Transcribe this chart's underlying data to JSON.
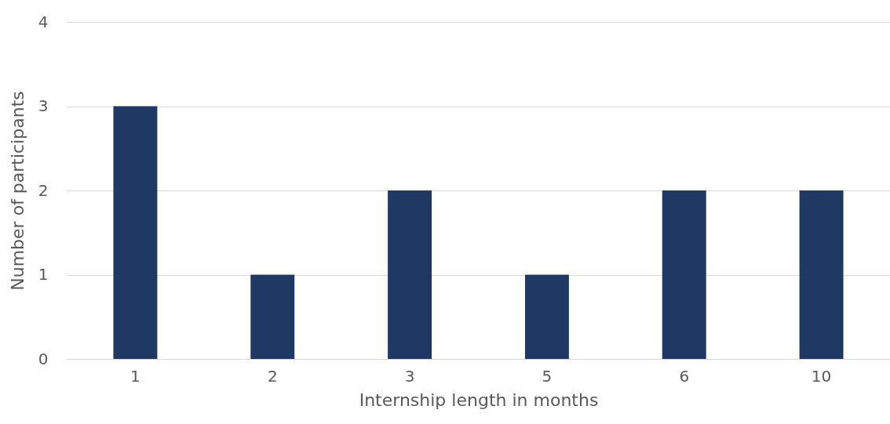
{
  "chart_data": {
    "type": "bar",
    "xlabel": "Internship length in months",
    "ylabel": "Number of participants",
    "categories": [
      "1",
      "2",
      "3",
      "5",
      "6",
      "10"
    ],
    "values": [
      3,
      1,
      2,
      1,
      2,
      2
    ],
    "color": "#203864",
    "ylim": [
      0,
      4
    ],
    "yticks": [
      0,
      1,
      2,
      3,
      4
    ],
    "grid": "y"
  }
}
